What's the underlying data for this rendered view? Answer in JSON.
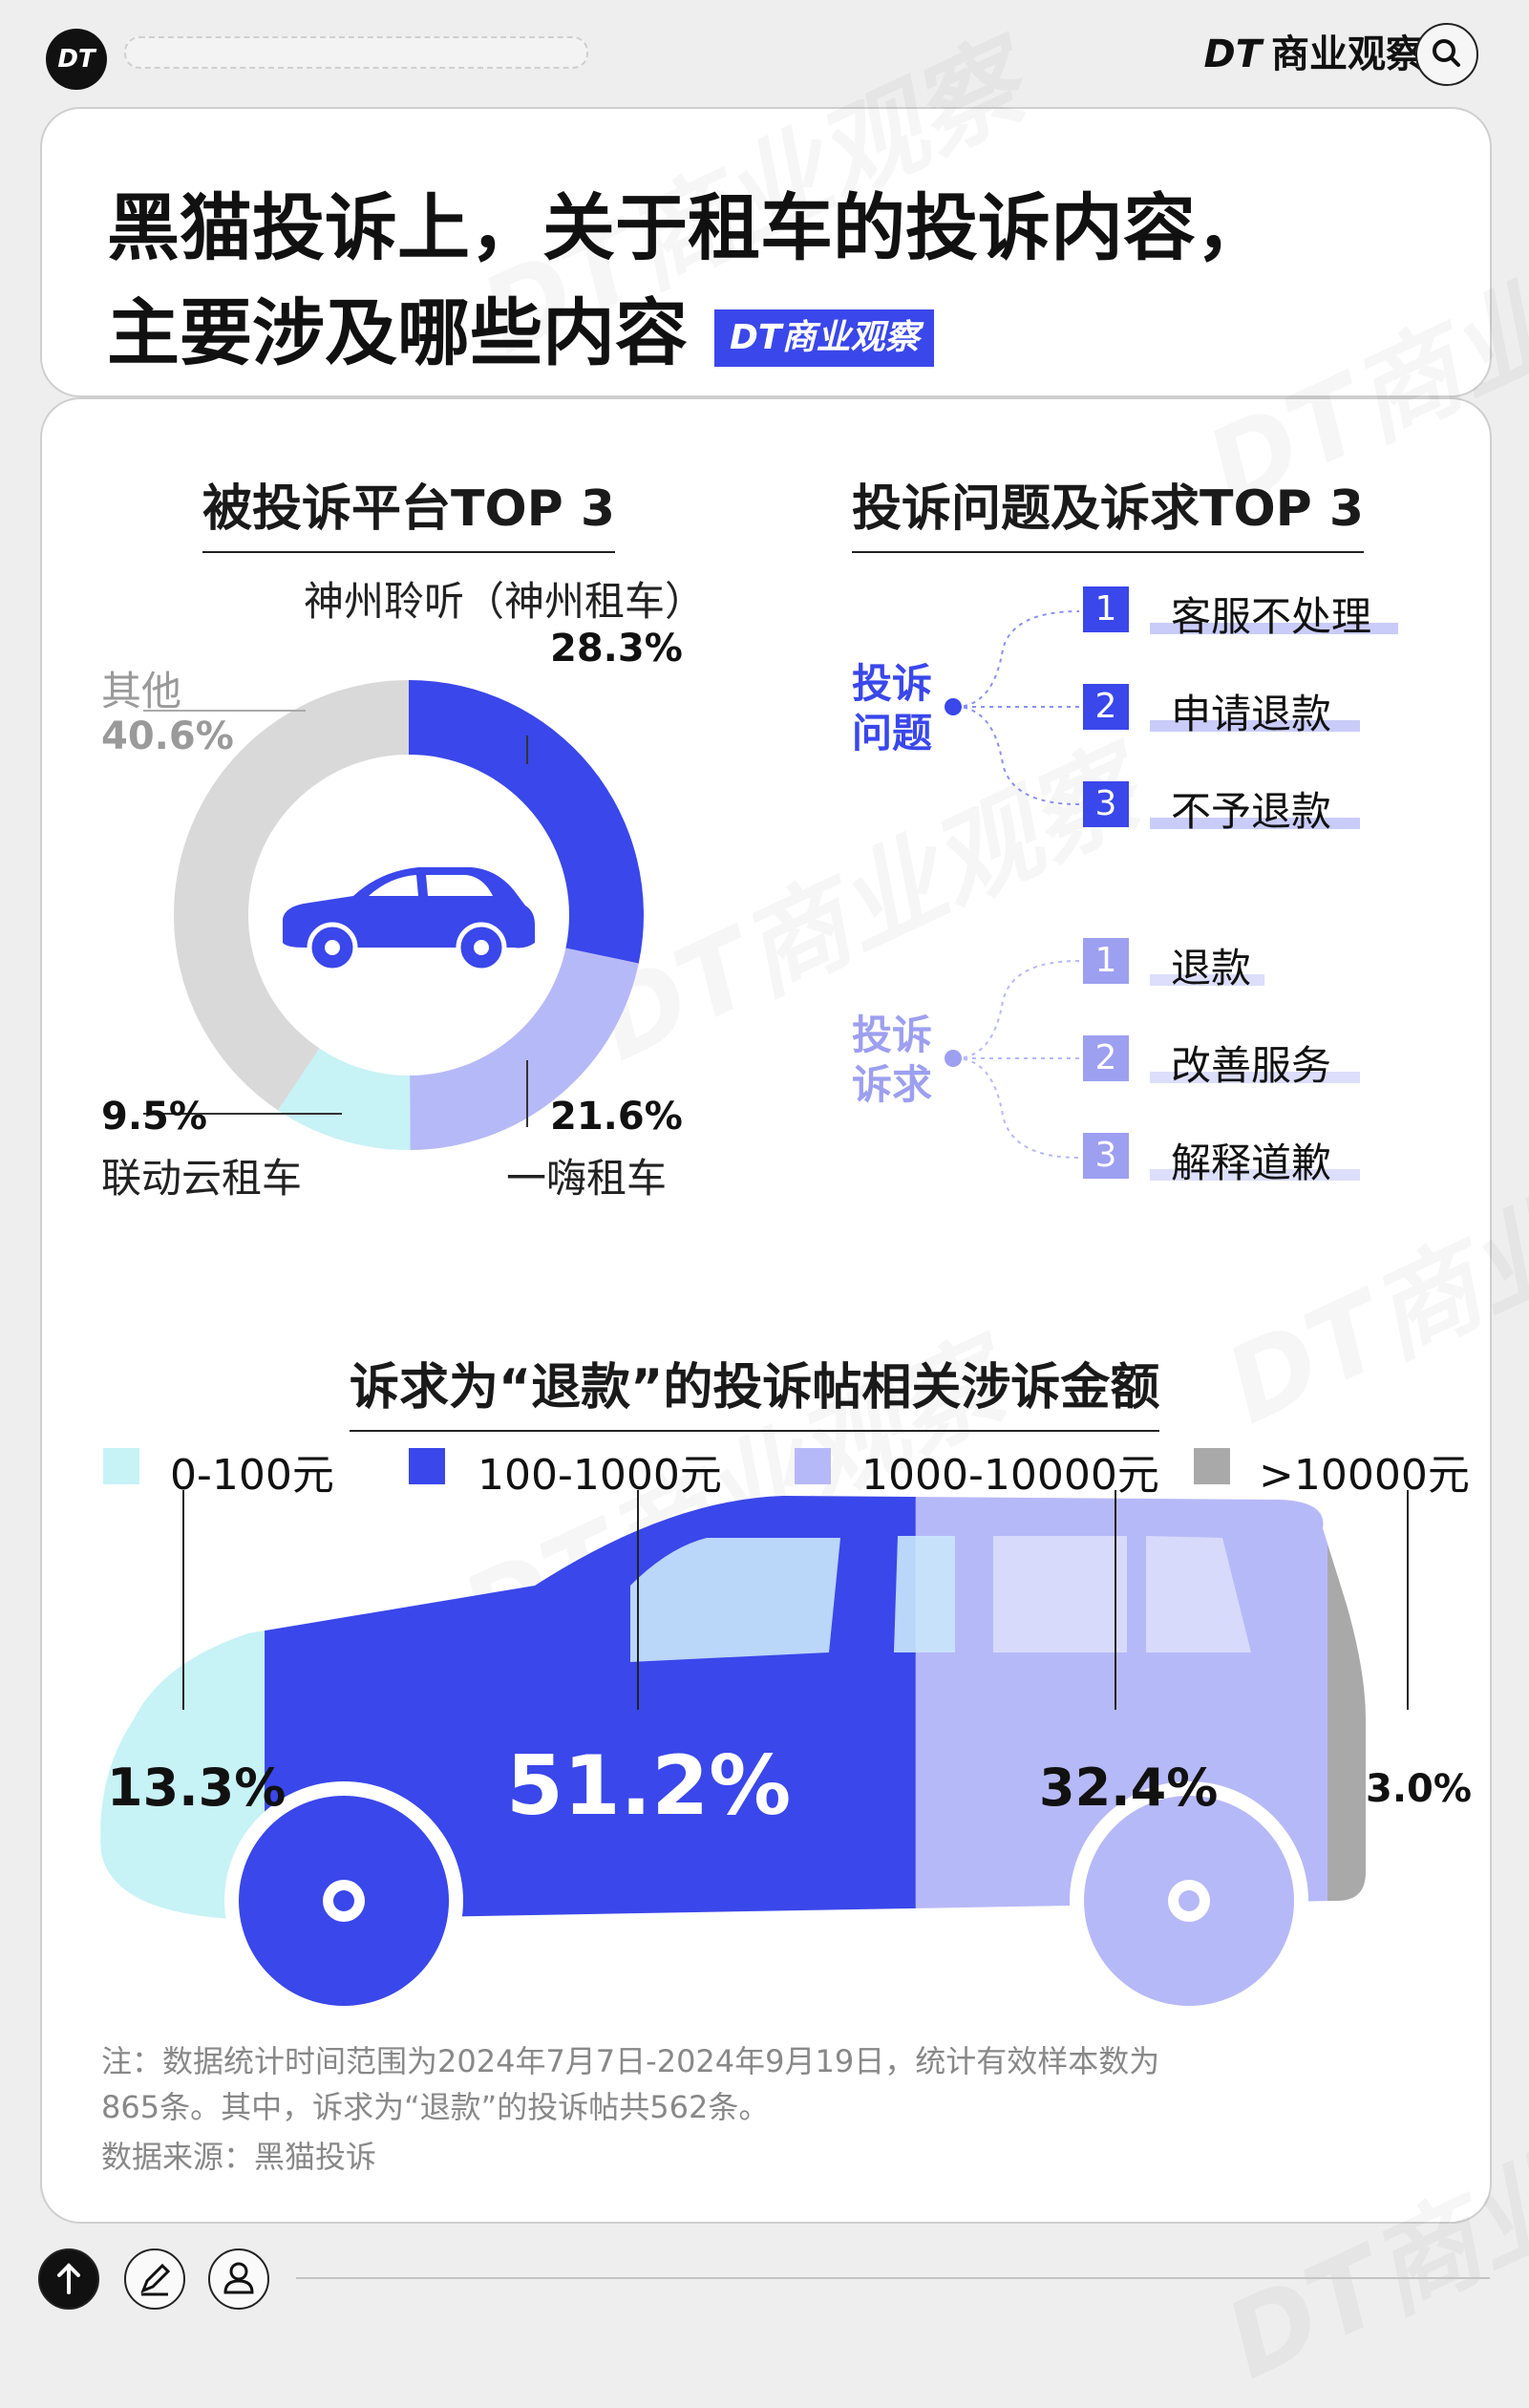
{
  "header": {
    "logo_text": "DT",
    "brand_dt": "DT",
    "brand_name": "商业观察",
    "search_icon": "search-icon"
  },
  "title": {
    "line1": "黑猫投诉上，关于租车的投诉内容，",
    "line2": "主要涉及哪些内容",
    "badge": "DT商业观察"
  },
  "watermark": "DT商业观察",
  "chart_data": [
    {
      "type": "pie",
      "title": "被投诉平台TOP 3",
      "center_icon": "car-icon",
      "slices": [
        {
          "label": "神州聆听（神州租车）",
          "value": 28.3,
          "value_text": "28.3%",
          "color": "#3a47ea"
        },
        {
          "label": "一嗨租车",
          "value": 21.6,
          "value_text": "21.6%",
          "color": "#b6b9f7"
        },
        {
          "label": "联动云租车",
          "value": 9.5,
          "value_text": "9.5%",
          "color": "#c7f2f6"
        },
        {
          "label": "其他",
          "value": 40.6,
          "value_text": "40.6%",
          "color": "#d9d9d9"
        }
      ]
    },
    {
      "type": "bar",
      "title": "诉求为“退款”的投诉帖相关涉诉金额",
      "stacked": true,
      "categories": [
        "0-100元",
        "100-1000元",
        "1000-10000元",
        ">10000元"
      ],
      "values": [
        13.3,
        51.2,
        32.4,
        3.0
      ],
      "value_texts": [
        "13.3%",
        "51.2%",
        "32.4%",
        "3.0%"
      ],
      "colors": [
        "#c7f2f6",
        "#3a47ea",
        "#b6b9f7",
        "#a9a9a9"
      ]
    }
  ],
  "complaints": {
    "title": "投诉问题及诉求TOP 3",
    "issues": {
      "category": [
        "投诉",
        "问题"
      ],
      "color": "#3a47ea",
      "items": [
        {
          "num": "1",
          "label": "客服不处理"
        },
        {
          "num": "2",
          "label": "申请退款"
        },
        {
          "num": "3",
          "label": "不予退款"
        }
      ]
    },
    "demands": {
      "category": [
        "投诉",
        "诉求"
      ],
      "color": "#9d9ff0",
      "items": [
        {
          "num": "1",
          "label": "退款"
        },
        {
          "num": "2",
          "label": "改善服务"
        },
        {
          "num": "3",
          "label": "解释道歉"
        }
      ]
    }
  },
  "notes": {
    "line1": "注：数据统计时间范围为2024年7月7日-2024年9月19日，统计有效样本数为",
    "line2": "865条。其中，诉求为“退款”的投诉帖共562条。",
    "source": "数据来源：黑猫投诉"
  },
  "nav": {
    "up_icon": "arrow-up-icon",
    "edit_icon": "pencil-icon",
    "user_icon": "user-icon"
  }
}
